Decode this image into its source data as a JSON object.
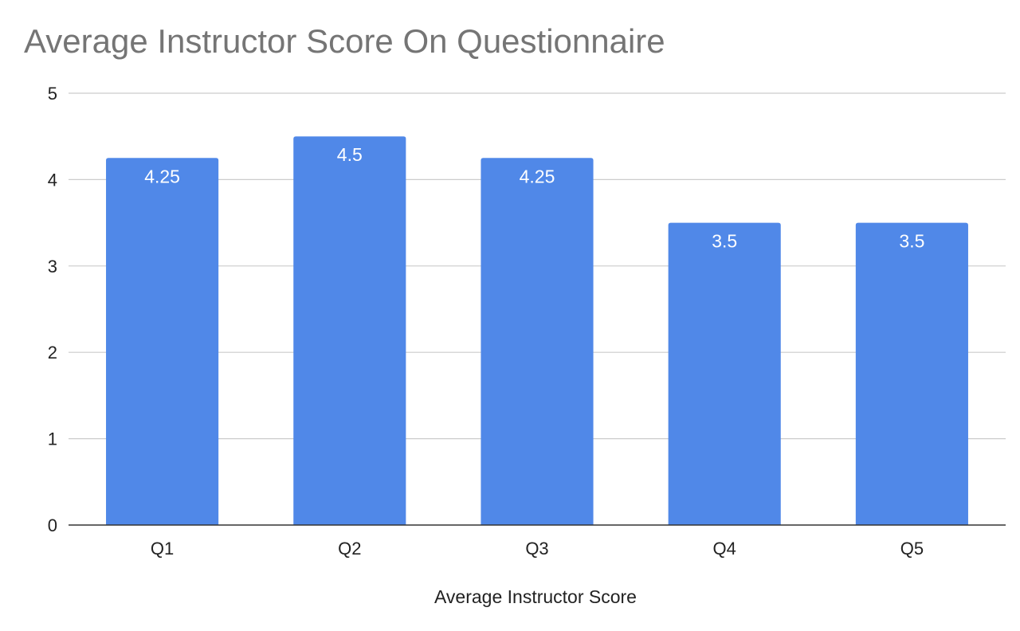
{
  "chart_data": {
    "type": "bar",
    "title": "Average Instructor Score On Questionnaire",
    "xlabel": "Average Instructor Score",
    "ylabel": "",
    "categories": [
      "Q1",
      "Q2",
      "Q3",
      "Q4",
      "Q5"
    ],
    "values": [
      4.25,
      4.5,
      4.25,
      3.5,
      3.5
    ],
    "data_labels": [
      "4.25",
      "4.5",
      "4.25",
      "3.5",
      "3.5"
    ],
    "y_ticks": [
      "0",
      "1",
      "2",
      "3",
      "4",
      "5"
    ],
    "ylim": [
      0,
      5
    ],
    "grid": true,
    "legend": "none",
    "colors": {
      "bar": "#5088e8",
      "grid": "#cccccc",
      "axis": "#333333",
      "title": "#757575"
    }
  }
}
